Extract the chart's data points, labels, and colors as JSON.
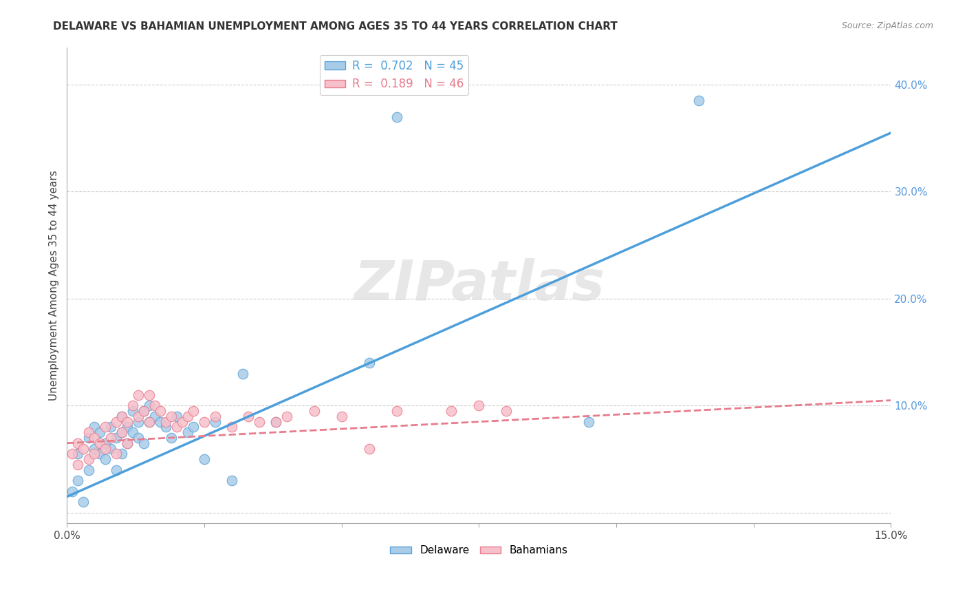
{
  "title": "DELAWARE VS BAHAMIAN UNEMPLOYMENT AMONG AGES 35 TO 44 YEARS CORRELATION CHART",
  "source": "Source: ZipAtlas.com",
  "ylabel": "Unemployment Among Ages 35 to 44 years",
  "watermark": "ZIPatlas",
  "xlim": [
    0.0,
    0.15
  ],
  "ylim": [
    -0.01,
    0.435
  ],
  "xtick_positions": [
    0.0,
    0.025,
    0.05,
    0.075,
    0.1,
    0.125,
    0.15
  ],
  "xtick_labels": [
    "0.0%",
    "",
    "",
    "",
    "",
    "",
    "15.0%"
  ],
  "ytick_positions": [
    0.0,
    0.1,
    0.2,
    0.3,
    0.4
  ],
  "ytick_labels": [
    "",
    "10.0%",
    "20.0%",
    "30.0%",
    "40.0%"
  ],
  "delaware_R": 0.702,
  "delaware_N": 45,
  "bahamian_R": 0.189,
  "bahamian_N": 46,
  "delaware_scatter_color": "#a8cce8",
  "delaware_scatter_edge": "#5ba3d9",
  "bahamian_scatter_color": "#f7c0cb",
  "bahamian_scatter_edge": "#e87b8c",
  "delaware_line_color": "#4d9fdb",
  "bahamian_line_color": "#e87b8c",
  "delaware_x": [
    0.001,
    0.002,
    0.002,
    0.003,
    0.004,
    0.004,
    0.005,
    0.005,
    0.006,
    0.006,
    0.007,
    0.007,
    0.008,
    0.008,
    0.009,
    0.009,
    0.01,
    0.01,
    0.01,
    0.011,
    0.011,
    0.012,
    0.012,
    0.013,
    0.013,
    0.014,
    0.014,
    0.015,
    0.015,
    0.016,
    0.017,
    0.018,
    0.019,
    0.02,
    0.022,
    0.023,
    0.025,
    0.027,
    0.03,
    0.032,
    0.038,
    0.055,
    0.06,
    0.095,
    0.115
  ],
  "delaware_y": [
    0.02,
    0.055,
    0.03,
    0.01,
    0.07,
    0.04,
    0.06,
    0.08,
    0.055,
    0.075,
    0.05,
    0.065,
    0.06,
    0.08,
    0.04,
    0.07,
    0.055,
    0.075,
    0.09,
    0.08,
    0.065,
    0.075,
    0.095,
    0.07,
    0.085,
    0.065,
    0.095,
    0.085,
    0.1,
    0.09,
    0.085,
    0.08,
    0.07,
    0.09,
    0.075,
    0.08,
    0.05,
    0.085,
    0.03,
    0.13,
    0.085,
    0.14,
    0.37,
    0.085,
    0.385
  ],
  "bahamian_x": [
    0.001,
    0.002,
    0.002,
    0.003,
    0.004,
    0.004,
    0.005,
    0.005,
    0.006,
    0.007,
    0.007,
    0.008,
    0.009,
    0.009,
    0.01,
    0.01,
    0.011,
    0.011,
    0.012,
    0.013,
    0.013,
    0.014,
    0.015,
    0.015,
    0.016,
    0.017,
    0.018,
    0.019,
    0.02,
    0.021,
    0.022,
    0.023,
    0.025,
    0.027,
    0.03,
    0.033,
    0.035,
    0.038,
    0.04,
    0.045,
    0.05,
    0.055,
    0.06,
    0.07,
    0.075,
    0.08
  ],
  "bahamian_y": [
    0.055,
    0.045,
    0.065,
    0.06,
    0.05,
    0.075,
    0.055,
    0.07,
    0.065,
    0.06,
    0.08,
    0.07,
    0.055,
    0.085,
    0.075,
    0.09,
    0.065,
    0.085,
    0.1,
    0.09,
    0.11,
    0.095,
    0.085,
    0.11,
    0.1,
    0.095,
    0.085,
    0.09,
    0.08,
    0.085,
    0.09,
    0.095,
    0.085,
    0.09,
    0.08,
    0.09,
    0.085,
    0.085,
    0.09,
    0.095,
    0.09,
    0.06,
    0.095,
    0.095,
    0.1,
    0.095
  ],
  "del_trend_x0": 0.0,
  "del_trend_y0": 0.015,
  "del_trend_x1": 0.15,
  "del_trend_y1": 0.355,
  "bah_trend_x0": 0.0,
  "bah_trend_y0": 0.065,
  "bah_trend_x1": 0.15,
  "bah_trend_y1": 0.105
}
